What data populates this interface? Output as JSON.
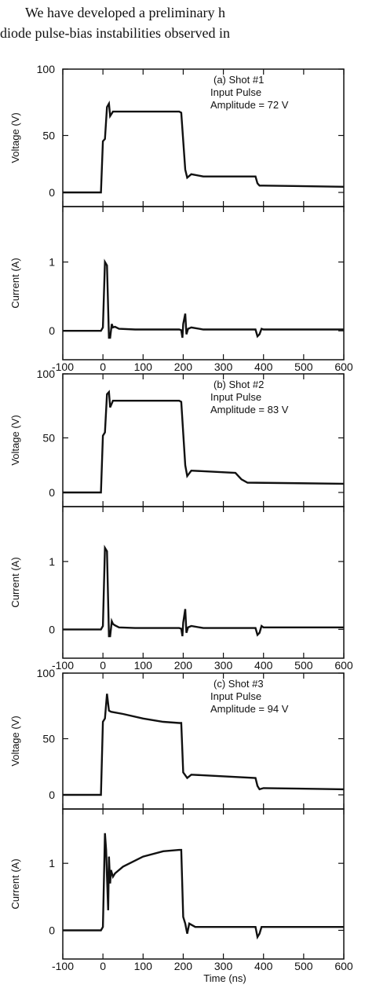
{
  "intro_text": {
    "line1": "We have developed a preliminary h",
    "line2": "diode pulse-bias instabilities observed in"
  },
  "shared_xlabel": "Time (ns)",
  "chart_data": [
    {
      "type": "line",
      "panel": "a-voltage",
      "annotation": [
        "(a) Shot #1",
        "Input Pulse",
        "Amplitude = 72 V"
      ],
      "ylabel": "Voltage (V)",
      "xlim": [
        -100,
        600
      ],
      "ylim": [
        0,
        100
      ],
      "yticks": [
        0,
        50,
        100
      ],
      "x": [
        -100,
        -5,
        0,
        5,
        10,
        15,
        18,
        25,
        190,
        195,
        205,
        210,
        220,
        250,
        380,
        385,
        390,
        400,
        600
      ],
      "y": [
        0,
        0,
        45,
        47,
        75,
        78,
        67,
        71,
        71,
        70,
        20,
        13,
        16,
        14,
        14,
        8,
        6,
        6,
        5
      ]
    },
    {
      "type": "line",
      "panel": "a-current",
      "ylabel": "Current (A)",
      "xlim": [
        -100,
        600
      ],
      "ylim": [
        -0.1,
        1.6
      ],
      "yticks": [
        0,
        1
      ],
      "xticks": [
        -100,
        0,
        100,
        200,
        300,
        400,
        500,
        600
      ],
      "x": [
        -100,
        -5,
        0,
        5,
        10,
        15,
        18,
        22,
        25,
        30,
        40,
        80,
        190,
        195,
        198,
        200,
        205,
        208,
        212,
        220,
        250,
        380,
        385,
        390,
        395,
        400,
        600
      ],
      "y": [
        0,
        0,
        0.05,
        1.0,
        0.95,
        -0.1,
        -0.1,
        0.1,
        0.05,
        0.06,
        0.03,
        0.02,
        0.02,
        0.01,
        -0.1,
        0.1,
        0.25,
        -0.05,
        0.03,
        0.05,
        0.02,
        0.02,
        -0.08,
        -0.05,
        0.03,
        0.02,
        0.02
      ]
    },
    {
      "type": "line",
      "panel": "b-voltage",
      "annotation": [
        "(b) Shot #2",
        "Input Pulse",
        "Amplitude = 83 V"
      ],
      "ylabel": "Voltage (V)",
      "xlim": [
        -100,
        600
      ],
      "ylim": [
        0,
        100
      ],
      "yticks": [
        0,
        50,
        100
      ],
      "x": [
        -100,
        -5,
        0,
        5,
        10,
        15,
        18,
        25,
        190,
        195,
        205,
        210,
        220,
        330,
        345,
        360,
        600
      ],
      "y": [
        0,
        0,
        52,
        55,
        90,
        92,
        78,
        84,
        84,
        83,
        25,
        15,
        20,
        18,
        12,
        9,
        8
      ]
    },
    {
      "type": "line",
      "panel": "b-current",
      "ylabel": "Current (A)",
      "xlim": [
        -100,
        600
      ],
      "ylim": [
        -0.1,
        1.6
      ],
      "yticks": [
        0,
        1
      ],
      "xticks": [
        -100,
        0,
        100,
        200,
        300,
        400,
        500,
        600
      ],
      "x": [
        -100,
        -5,
        0,
        5,
        10,
        15,
        18,
        22,
        25,
        30,
        40,
        80,
        190,
        195,
        198,
        200,
        205,
        208,
        212,
        220,
        250,
        380,
        385,
        390,
        395,
        400,
        600
      ],
      "y": [
        0,
        0,
        0.05,
        1.2,
        1.15,
        -0.1,
        -0.1,
        0.12,
        0.08,
        0.06,
        0.03,
        0.02,
        0.02,
        0.01,
        -0.1,
        0.1,
        0.3,
        -0.05,
        0.03,
        0.05,
        0.02,
        0.02,
        -0.08,
        -0.05,
        0.05,
        0.03,
        0.03
      ]
    },
    {
      "type": "line",
      "panel": "c-voltage",
      "annotation": [
        "(c) Shot #3",
        "Input Pulse",
        "Amplitude = 94 V"
      ],
      "ylabel": "Voltage (V)",
      "xlim": [
        -100,
        600
      ],
      "ylim": [
        0,
        100
      ],
      "yticks": [
        0,
        50,
        100
      ],
      "x": [
        -100,
        -5,
        0,
        5,
        10,
        15,
        20,
        50,
        100,
        150,
        190,
        195,
        200,
        210,
        220,
        380,
        385,
        390,
        400,
        600
      ],
      "y": [
        0,
        0,
        65,
        68,
        90,
        75,
        74,
        72,
        68,
        65,
        64,
        64,
        20,
        15,
        18,
        15,
        8,
        5,
        6,
        5
      ]
    },
    {
      "type": "line",
      "panel": "c-current",
      "ylabel": "Current (A)",
      "xlim": [
        -100,
        600
      ],
      "ylim": [
        -0.1,
        1.6
      ],
      "yticks": [
        0,
        1
      ],
      "xticks": [
        -100,
        0,
        100,
        200,
        300,
        400,
        500,
        600
      ],
      "x": [
        -100,
        -5,
        0,
        5,
        8,
        10,
        13,
        15,
        18,
        20,
        25,
        30,
        50,
        100,
        150,
        190,
        195,
        200,
        205,
        210,
        215,
        230,
        380,
        385,
        390,
        395,
        600
      ],
      "y": [
        0,
        0,
        0.05,
        1.45,
        1.2,
        0.8,
        0.3,
        1.1,
        0.7,
        0.9,
        0.8,
        0.85,
        0.95,
        1.1,
        1.18,
        1.2,
        1.2,
        0.2,
        0.1,
        -0.05,
        0.1,
        0.05,
        0.05,
        -0.1,
        -0.05,
        0.05,
        0.05
      ]
    }
  ]
}
